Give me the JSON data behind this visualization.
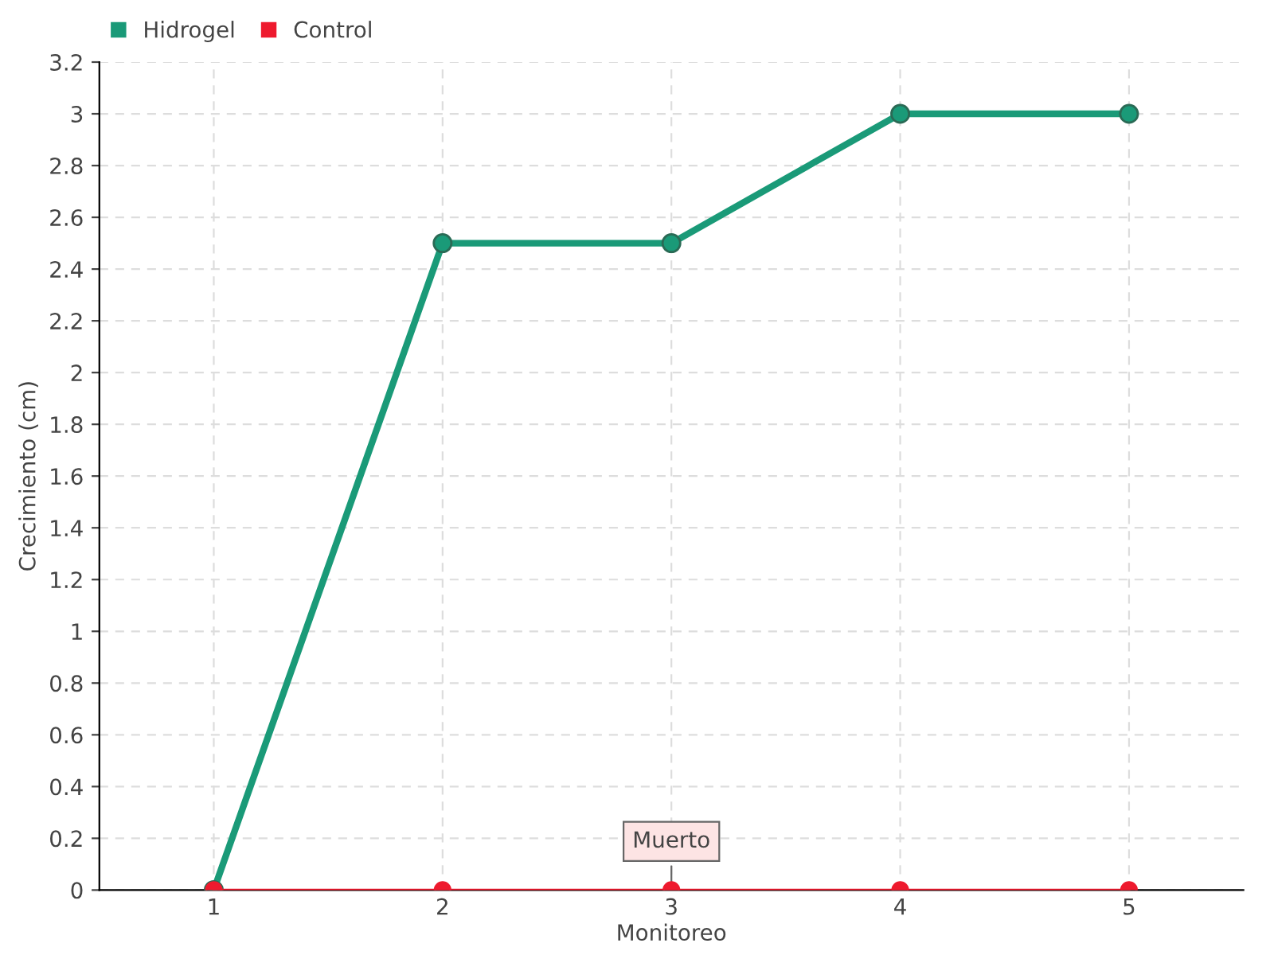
{
  "chart_data": {
    "type": "line",
    "xlabel": "Monitoreo",
    "ylabel": "Crecimiento (cm)",
    "categories": [
      "1",
      "2",
      "3",
      "4",
      "5"
    ],
    "series": [
      {
        "name": "Hidrogel",
        "color": "#1a9a78",
        "values": [
          0,
          2.5,
          2.5,
          3,
          3
        ]
      },
      {
        "name": "Control",
        "color": "#ee1a2e",
        "values": [
          0,
          0,
          0,
          0,
          0
        ]
      }
    ],
    "ylim": [
      0,
      3.2
    ],
    "yticks": [
      0,
      0.2,
      0.4,
      0.6,
      0.8,
      1,
      1.2,
      1.4,
      1.6,
      1.8,
      2,
      2.2,
      2.4,
      2.6,
      2.8,
      3,
      3.2
    ],
    "annotations": [
      {
        "text": "Muerto",
        "x": "3",
        "y": 0
      }
    ],
    "grid": true,
    "legend": "top left",
    "marker": "circle",
    "line_style": "solid"
  }
}
